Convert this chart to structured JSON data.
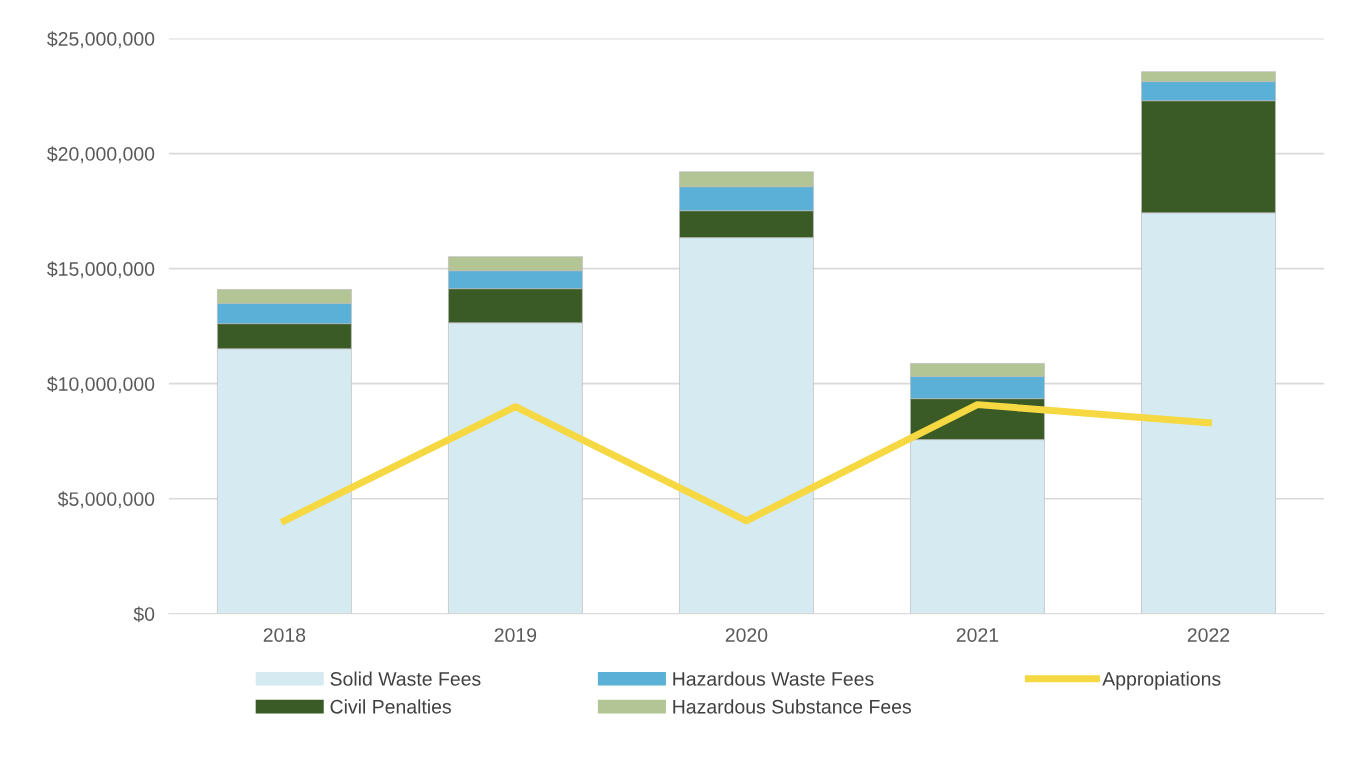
{
  "chart_data": {
    "type": "bar",
    "stacked": true,
    "categories": [
      "2018",
      "2019",
      "2020",
      "2021",
      "2022"
    ],
    "series": [
      {
        "name": "Solid Waste Fees",
        "color": "#d6eaf2",
        "values": [
          11520000,
          12650000,
          16350000,
          7570000,
          17430000
        ]
      },
      {
        "name": "Civil Penalties",
        "color": "#3a5a26",
        "values": [
          1090000,
          1480000,
          1170000,
          1780000,
          4870000
        ]
      },
      {
        "name": "Hazardous Waste Fees",
        "color": "#5ab0d6",
        "values": [
          880000,
          780000,
          1040000,
          960000,
          830000
        ]
      },
      {
        "name": "Hazardous Substance Fees",
        "color": "#b3c594",
        "values": [
          600000,
          610000,
          650000,
          570000,
          430000
        ]
      },
      {
        "name": "Appropiations",
        "type": "line",
        "color": "#f5d842",
        "values": [
          4040000,
          9000000,
          4040000,
          9090000,
          8300000
        ]
      }
    ],
    "ylim": [
      0,
      25000000
    ],
    "yticks": [
      {
        "value": 0,
        "label": "$0"
      },
      {
        "value": 5000000,
        "label": "$5,000,000"
      },
      {
        "value": 10000000,
        "label": "$10,000,000"
      },
      {
        "value": 15000000,
        "label": "$15,000,000"
      },
      {
        "value": 20000000,
        "label": "$20,000,000"
      },
      {
        "value": 25000000,
        "label": "$25,000,000"
      }
    ],
    "grid": "y",
    "legend": "bottom",
    "marker": "none"
  }
}
